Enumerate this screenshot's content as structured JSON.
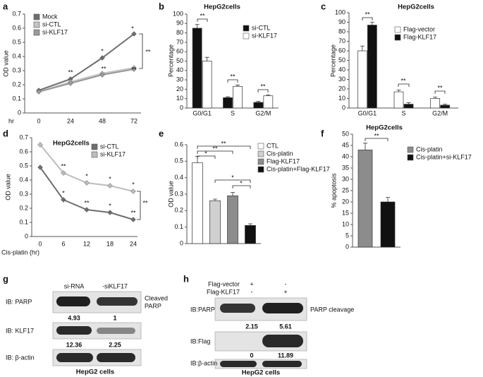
{
  "chart_data": [
    {
      "label": "a",
      "type": "line",
      "x_label": "hr",
      "y_label": "OD value",
      "categories": [
        "0",
        "24",
        "48",
        "72"
      ],
      "series": [
        {
          "name": "Mock",
          "color": "#6e6e6e",
          "values": [
            0.16,
            0.24,
            0.39,
            0.56
          ]
        },
        {
          "name": "si-CTL",
          "color": "#c4c4c4",
          "values": [
            0.15,
            0.22,
            0.28,
            0.32
          ]
        },
        {
          "name": "si-KLF17",
          "color": "#9a9a9a",
          "values": [
            0.15,
            0.21,
            0.27,
            0.31
          ]
        }
      ],
      "ylim": [
        0,
        0.7
      ],
      "yticks": [
        0,
        0.1,
        0.2,
        0.3,
        0.4,
        0.5,
        0.6,
        0.7
      ],
      "annotations": [
        "**",
        "*",
        "**",
        "*",
        "**",
        "**"
      ]
    },
    {
      "label": "b",
      "type": "bar",
      "title": "HepG2cells",
      "y_label": "Percentage",
      "categories": [
        "G0/G1",
        "S",
        "G2/M"
      ],
      "series": [
        {
          "name": "si-CTL",
          "color": "#111111",
          "values": [
            85,
            11,
            6
          ],
          "errors": [
            4,
            1,
            1
          ]
        },
        {
          "name": "si-KLF17",
          "color": "#ffffff",
          "values": [
            50,
            23,
            13
          ],
          "errors": [
            4,
            1.5,
            1
          ]
        }
      ],
      "ylim": [
        0,
        100
      ],
      "yticks": [
        0,
        10,
        20,
        30,
        40,
        50,
        60,
        70,
        80,
        90,
        100
      ],
      "annotations": [
        "**",
        "**",
        "**"
      ]
    },
    {
      "label": "c",
      "type": "bar",
      "title": "HepG2cells",
      "y_label": "Percentage",
      "categories": [
        "G0/G1",
        "S",
        "G2/M"
      ],
      "series": [
        {
          "name": "Flag-vector",
          "color": "#ffffff",
          "values": [
            60,
            17,
            10
          ],
          "errors": [
            5,
            2,
            1.5
          ]
        },
        {
          "name": "Flag-KLF17",
          "color": "#111111",
          "values": [
            87,
            4,
            3
          ],
          "errors": [
            3,
            1.5,
            1
          ]
        }
      ],
      "ylim": [
        0,
        100
      ],
      "yticks": [
        0,
        10,
        20,
        30,
        40,
        50,
        60,
        70,
        80,
        90,
        100
      ],
      "annotations": [
        "**",
        "**",
        "**"
      ]
    },
    {
      "label": "d",
      "type": "line",
      "title": "HepG2cells",
      "x_label": "Cis-platin (hr)",
      "y_label": "OD value",
      "categories": [
        "0",
        "6",
        "12",
        "18",
        "24"
      ],
      "series": [
        {
          "name": "si-CTL",
          "color": "#6e6e6e",
          "values": [
            0.49,
            0.26,
            0.19,
            0.17,
            0.12
          ]
        },
        {
          "name": "si-KLF17",
          "color": "#bdbdbd",
          "values": [
            0.65,
            0.45,
            0.38,
            0.36,
            0.32
          ]
        }
      ],
      "ylim": [
        0,
        0.7
      ],
      "yticks": [
        0,
        0.1,
        0.2,
        0.3,
        0.4,
        0.5,
        0.6,
        0.7
      ],
      "annotations": [
        "**",
        "*",
        "*",
        "**",
        "*",
        "*",
        "*",
        "**",
        "**"
      ]
    },
    {
      "label": "e",
      "type": "bar",
      "y_label": "OD value",
      "categories": [
        null
      ],
      "series": [
        {
          "name": "CTL",
          "color": "#ffffff",
          "values": [
            0.49
          ],
          "errors": [
            0.04
          ]
        },
        {
          "name": "Cis-platin",
          "color": "#d0d0d0",
          "values": [
            0.26
          ],
          "errors": [
            0.01
          ]
        },
        {
          "name": "Flag-KLF17",
          "color": "#8c8c8c",
          "values": [
            0.29
          ],
          "errors": [
            0.02
          ]
        },
        {
          "name": "Cis-platin+Flag-KLF17",
          "color": "#111111",
          "values": [
            0.11
          ],
          "errors": [
            0.01
          ]
        }
      ],
      "ylim": [
        0,
        0.6
      ],
      "yticks": [
        0,
        0.1,
        0.2,
        0.3,
        0.4,
        0.5,
        0.6
      ],
      "annotations": [
        "**",
        "**",
        "*",
        "*",
        "*"
      ]
    },
    {
      "label": "f",
      "type": "bar",
      "title": "HepG2cells",
      "y_label": "% apoptosis",
      "categories": [
        null
      ],
      "series": [
        {
          "name": "Cis-platin",
          "color": "#8c8c8c",
          "values": [
            43
          ],
          "errors": [
            3
          ]
        },
        {
          "name": "Cis-platin+si-KLF17",
          "color": "#111111",
          "values": [
            20
          ],
          "errors": [
            2
          ]
        }
      ],
      "ylim": [
        0,
        50
      ],
      "yticks": [
        0,
        5,
        10,
        15,
        20,
        25,
        30,
        35,
        40,
        45,
        50
      ],
      "annotations": [
        "**"
      ]
    }
  ],
  "blots": [
    {
      "label": "g",
      "columns": [
        "si-RNA",
        "-siKLF17"
      ],
      "rows": [
        {
          "probe": "IB: PARP",
          "note": [
            "Cleaved",
            "PARP"
          ],
          "values": [
            4.93,
            1
          ]
        },
        {
          "probe": "IB: KLF17",
          "values": [
            12.36,
            2.25
          ]
        },
        {
          "probe": "IB: β-actin"
        }
      ],
      "caption": "HepG2 cells"
    },
    {
      "label": "h",
      "conditions": [
        {
          "name": "Flag-vector",
          "signs": [
            "+",
            "-"
          ]
        },
        {
          "name": "Flag-KLF17",
          "signs": [
            "-",
            "+"
          ]
        }
      ],
      "rows": [
        {
          "probe": "IB:PARP",
          "note": [
            "PARP cleavage"
          ],
          "values": [
            2.15,
            5.61
          ]
        },
        {
          "probe": "IB:Flag",
          "values": [
            0,
            11.89
          ]
        },
        {
          "probe": "IB:β-actin"
        }
      ],
      "caption": "HepG2 cells"
    }
  ]
}
